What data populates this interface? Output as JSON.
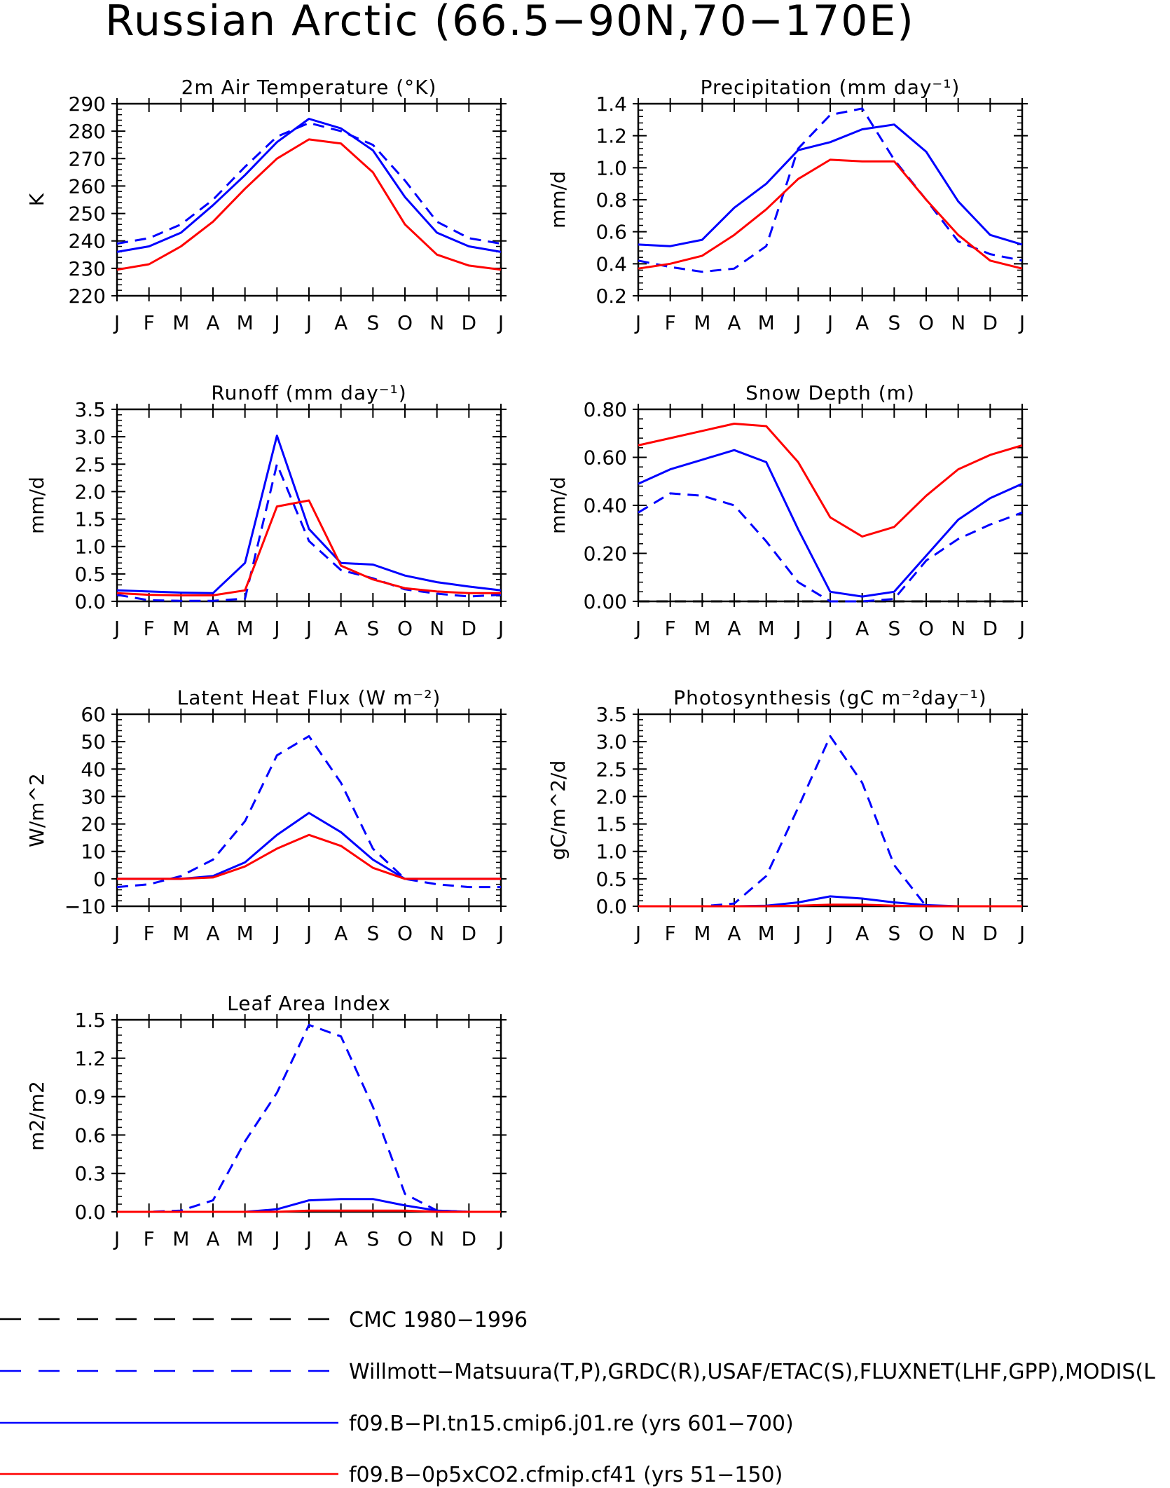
{
  "page": {
    "title": "Russian Arctic (66.5−90N,70−170E)"
  },
  "colors": {
    "axis": "#000000",
    "observed": "#1a1aff",
    "model_pi": "#0000ff",
    "model_05xco2": "#ff0000",
    "cmc": "#000000"
  },
  "legend": {
    "entries": [
      {
        "label": "CMC 1980−1996",
        "color": "#000000",
        "dash": "dashed"
      },
      {
        "label": "Willmott−Matsuura(T,P),GRDC(R),USAF/ETAC(S),FLUXNET(LHF,GPP),MODIS(L",
        "color": "#0000ff",
        "dash": "dashed"
      },
      {
        "label": "f09.B−PI.tn15.cmip6.j01.re (yrs 601−700)",
        "color": "#0000ff",
        "dash": "solid"
      },
      {
        "label": "f09.B−0p5xCO2.cfmip.cf41 (yrs 51−150)",
        "color": "#ff0000",
        "dash": "solid"
      }
    ]
  },
  "chart_data": [
    {
      "type": "line",
      "title": "2m Air Temperature (°K)",
      "ylabel": "K",
      "xlabel": "",
      "x": [
        "J",
        "F",
        "M",
        "A",
        "M",
        "J",
        "J",
        "A",
        "S",
        "O",
        "N",
        "D",
        "J"
      ],
      "ylim": [
        220,
        290
      ],
      "yticks": [
        220,
        230,
        240,
        250,
        260,
        270,
        280,
        290
      ],
      "ytick_labels": [
        "220",
        "230",
        "240",
        "250",
        "260",
        "270",
        "280",
        "290"
      ],
      "series": [
        {
          "name": "Willmott−Matsuura(T,P),GRDC(R),USAF/ETAC(S),FLUXNET(LHF,GPP),MODIS(L",
          "style": "dashed",
          "color": "#0000ff",
          "values": [
            239,
            241,
            246,
            255,
            267,
            278,
            283,
            280,
            275,
            262,
            247,
            241,
            239
          ]
        },
        {
          "name": "f09.B−PI.tn15.cmip6.j01.re (yrs 601−700)",
          "style": "solid",
          "color": "#0000ff",
          "values": [
            236,
            238,
            243,
            253,
            264,
            276,
            284.5,
            281,
            273,
            256,
            243,
            238,
            236
          ]
        },
        {
          "name": "f09.B−0p5xCO2.cfmip.cf41 (yrs 51−150)",
          "style": "solid",
          "color": "#ff0000",
          "values": [
            229.5,
            231.5,
            238,
            247,
            259,
            270,
            277,
            275.5,
            265,
            246,
            235,
            231,
            229.5
          ]
        }
      ]
    },
    {
      "type": "line",
      "title": "Precipitation (mm day⁻¹)",
      "ylabel": "mm/d",
      "xlabel": "",
      "x": [
        "J",
        "F",
        "M",
        "A",
        "M",
        "J",
        "J",
        "A",
        "S",
        "O",
        "N",
        "D",
        "J"
      ],
      "ylim": [
        0.2,
        1.4
      ],
      "yticks": [
        0.2,
        0.4,
        0.6,
        0.8,
        1.0,
        1.2,
        1.4
      ],
      "ytick_labels": [
        "0.2",
        "0.4",
        "0.6",
        "0.8",
        "1.0",
        "1.2",
        "1.4"
      ],
      "series": [
        {
          "name": "Willmott−Matsuura(T,P),GRDC(R),USAF/ETAC(S),FLUXNET(LHF,GPP),MODIS(L",
          "style": "dashed",
          "color": "#0000ff",
          "values": [
            0.42,
            0.38,
            0.35,
            0.37,
            0.51,
            1.12,
            1.33,
            1.37,
            1.05,
            0.8,
            0.54,
            0.46,
            0.42
          ]
        },
        {
          "name": "f09.B−PI.tn15.cmip6.j01.re (yrs 601−700)",
          "style": "solid",
          "color": "#0000ff",
          "values": [
            0.52,
            0.51,
            0.55,
            0.75,
            0.9,
            1.11,
            1.16,
            1.24,
            1.27,
            1.1,
            0.79,
            0.58,
            0.52
          ]
        },
        {
          "name": "f09.B−0p5xCO2.cfmip.cf41 (yrs 51−150)",
          "style": "solid",
          "color": "#ff0000",
          "values": [
            0.37,
            0.4,
            0.45,
            0.58,
            0.74,
            0.93,
            1.05,
            1.04,
            1.04,
            0.8,
            0.58,
            0.42,
            0.37
          ]
        }
      ]
    },
    {
      "type": "line",
      "title": "Runoff (mm day⁻¹)",
      "ylabel": "mm/d",
      "xlabel": "",
      "x": [
        "J",
        "F",
        "M",
        "A",
        "M",
        "J",
        "J",
        "A",
        "S",
        "O",
        "N",
        "D",
        "J"
      ],
      "ylim": [
        0.0,
        3.5
      ],
      "yticks": [
        0.0,
        0.5,
        1.0,
        1.5,
        2.0,
        2.5,
        3.0,
        3.5
      ],
      "ytick_labels": [
        "0.0",
        "0.5",
        "1.0",
        "1.5",
        "2.0",
        "2.5",
        "3.0",
        "3.5"
      ],
      "series": [
        {
          "name": "Willmott−Matsuura(T,P),GRDC(R),USAF/ETAC(S),FLUXNET(LHF,GPP),MODIS(L",
          "style": "dashed",
          "color": "#0000ff",
          "values": [
            0.12,
            0.02,
            0.01,
            0.01,
            0.05,
            2.5,
            1.1,
            0.57,
            0.42,
            0.22,
            0.14,
            0.09,
            0.12
          ]
        },
        {
          "name": "f09.B−PI.tn15.cmip6.j01.re (yrs 601−700)",
          "style": "solid",
          "color": "#0000ff",
          "values": [
            0.2,
            0.18,
            0.16,
            0.15,
            0.7,
            3.02,
            1.32,
            0.7,
            0.67,
            0.47,
            0.35,
            0.27,
            0.2
          ]
        },
        {
          "name": "f09.B−0p5xCO2.cfmip.cf41 (yrs 51−150)",
          "style": "solid",
          "color": "#ff0000",
          "values": [
            0.15,
            0.12,
            0.11,
            0.11,
            0.2,
            1.73,
            1.84,
            0.65,
            0.4,
            0.24,
            0.18,
            0.15,
            0.15
          ]
        }
      ]
    },
    {
      "type": "line",
      "title": "Snow Depth (m)",
      "ylabel": "mm/d",
      "xlabel": "",
      "x": [
        "J",
        "F",
        "M",
        "A",
        "M",
        "J",
        "J",
        "A",
        "S",
        "O",
        "N",
        "D",
        "J"
      ],
      "ylim": [
        0.0,
        0.8
      ],
      "yticks": [
        0.0,
        0.2,
        0.4,
        0.6,
        0.8
      ],
      "ytick_labels": [
        "0.00",
        "0.20",
        "0.40",
        "0.60",
        "0.80"
      ],
      "series": [
        {
          "name": "CMC 1980−1996",
          "style": "dashed",
          "color": "#000000",
          "values": [
            0,
            0,
            0,
            0,
            0,
            0,
            0,
            0,
            0,
            0,
            0,
            0,
            0
          ]
        },
        {
          "name": "Willmott−Matsuura(T,P),GRDC(R),USAF/ETAC(S),FLUXNET(LHF,GPP),MODIS(L",
          "style": "dashed",
          "color": "#0000ff",
          "values": [
            0.37,
            0.45,
            0.44,
            0.4,
            0.25,
            0.08,
            0.0,
            0.0,
            0.01,
            0.17,
            0.26,
            0.32,
            0.37
          ]
        },
        {
          "name": "f09.B−PI.tn15.cmip6.j01.re (yrs 601−700)",
          "style": "solid",
          "color": "#0000ff",
          "values": [
            0.49,
            0.55,
            0.59,
            0.63,
            0.58,
            0.3,
            0.04,
            0.02,
            0.04,
            0.19,
            0.34,
            0.43,
            0.49
          ]
        },
        {
          "name": "f09.B−0p5xCO2.cfmip.cf41 (yrs 51−150)",
          "style": "solid",
          "color": "#ff0000",
          "values": [
            0.65,
            0.68,
            0.71,
            0.74,
            0.73,
            0.58,
            0.35,
            0.27,
            0.31,
            0.44,
            0.55,
            0.61,
            0.65
          ]
        }
      ]
    },
    {
      "type": "line",
      "title": "Latent Heat Flux (W m⁻²)",
      "ylabel": "W/m^2",
      "xlabel": "",
      "x": [
        "J",
        "F",
        "M",
        "A",
        "M",
        "J",
        "J",
        "A",
        "S",
        "O",
        "N",
        "D",
        "J"
      ],
      "ylim": [
        -10,
        60
      ],
      "yticks": [
        -10,
        0,
        10,
        20,
        30,
        40,
        50,
        60
      ],
      "ytick_labels": [
        "−10",
        "0",
        "10",
        "20",
        "30",
        "40",
        "50",
        "60"
      ],
      "series": [
        {
          "name": "Willmott−Matsuura(T,P),GRDC(R),USAF/ETAC(S),FLUXNET(LHF,GPP),MODIS(L",
          "style": "dashed",
          "color": "#0000ff",
          "values": [
            -3,
            -2,
            1,
            7,
            21,
            45,
            52,
            35,
            11,
            0,
            -2,
            -3,
            -3
          ]
        },
        {
          "name": "f09.B−PI.tn15.cmip6.j01.re (yrs 601−700)",
          "style": "solid",
          "color": "#0000ff",
          "values": [
            0,
            0,
            0,
            1,
            6,
            16,
            24,
            17,
            7,
            0,
            0,
            0,
            0
          ]
        },
        {
          "name": "f09.B−0p5xCO2.cfmip.cf41 (yrs 51−150)",
          "style": "solid",
          "color": "#ff0000",
          "values": [
            0,
            0,
            0,
            0.5,
            4.5,
            11,
            16,
            12,
            4,
            0,
            0,
            0,
            0
          ]
        }
      ]
    },
    {
      "type": "line",
      "title": "Photosynthesis (gC m⁻²day⁻¹)",
      "ylabel": "gC/m^2/d",
      "xlabel": "",
      "x": [
        "J",
        "F",
        "M",
        "A",
        "M",
        "J",
        "J",
        "A",
        "S",
        "O",
        "N",
        "D",
        "J"
      ],
      "ylim": [
        0.0,
        3.5
      ],
      "yticks": [
        0.0,
        0.5,
        1.0,
        1.5,
        2.0,
        2.5,
        3.0,
        3.5
      ],
      "ytick_labels": [
        "0.0",
        "0.5",
        "1.0",
        "1.5",
        "2.0",
        "2.5",
        "3.0",
        "3.5"
      ],
      "series": [
        {
          "name": "Willmott−Matsuura(T,P),GRDC(R),USAF/ETAC(S),FLUXNET(LHF,GPP),MODIS(L",
          "style": "dashed",
          "color": "#0000ff",
          "values": [
            0,
            0,
            0,
            0.05,
            0.55,
            1.8,
            3.1,
            2.25,
            0.75,
            0.0,
            0,
            0,
            0
          ]
        },
        {
          "name": "f09.B−PI.tn15.cmip6.j01.re (yrs 601−700)",
          "style": "solid",
          "color": "#0000ff",
          "values": [
            0,
            0,
            0,
            0,
            0.01,
            0.07,
            0.18,
            0.14,
            0.07,
            0.02,
            0,
            0,
            0
          ]
        },
        {
          "name": "f09.B−0p5xCO2.cfmip.cf41 (yrs 51−150)",
          "style": "solid",
          "color": "#ff0000",
          "values": [
            0,
            0,
            0,
            0,
            0,
            0.01,
            0.03,
            0.03,
            0.01,
            0,
            0,
            0,
            0
          ]
        }
      ]
    },
    {
      "type": "line",
      "title": "Leaf Area Index",
      "ylabel": "m2/m2",
      "xlabel": "",
      "x": [
        "J",
        "F",
        "M",
        "A",
        "M",
        "J",
        "J",
        "A",
        "S",
        "O",
        "N",
        "D",
        "J"
      ],
      "ylim": [
        0.0,
        1.5
      ],
      "yticks": [
        0.0,
        0.3,
        0.6,
        0.9,
        1.2,
        1.5
      ],
      "ytick_labels": [
        "0.0",
        "0.3",
        "0.6",
        "0.9",
        "1.2",
        "1.5"
      ],
      "series": [
        {
          "name": "Willmott−Matsuura(T,P),GRDC(R),USAF/ETAC(S),FLUXNET(LHF,GPP),MODIS(L",
          "style": "dashed",
          "color": "#0000ff",
          "values": [
            0,
            0,
            0.01,
            0.09,
            0.55,
            0.93,
            1.46,
            1.37,
            0.82,
            0.14,
            0.01,
            0,
            0
          ]
        },
        {
          "name": "f09.B−PI.tn15.cmip6.j01.re (yrs 601−700)",
          "style": "solid",
          "color": "#0000ff",
          "values": [
            0,
            0,
            0,
            0,
            0,
            0.02,
            0.09,
            0.1,
            0.1,
            0.05,
            0.01,
            0,
            0
          ]
        },
        {
          "name": "f09.B−0p5xCO2.cfmip.cf41 (yrs 51−150)",
          "style": "solid",
          "color": "#ff0000",
          "values": [
            0,
            0,
            0,
            0,
            0,
            0,
            0.01,
            0.01,
            0.01,
            0.01,
            0,
            0,
            0
          ]
        }
      ]
    }
  ]
}
